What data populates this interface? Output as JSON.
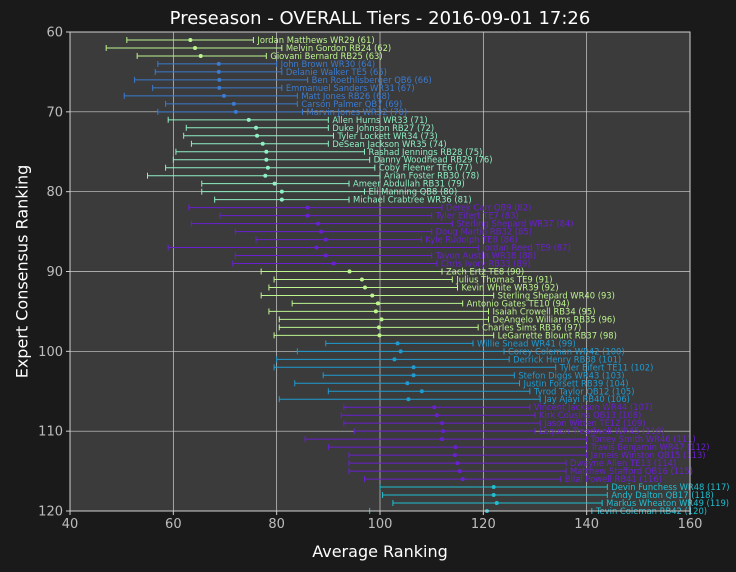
{
  "chart_data": {
    "type": "scatter",
    "title": "Preseason - OVERALL Tiers - 2016-09-01 17:26",
    "xlabel": "Average Ranking",
    "ylabel": "Expert Consensus Ranking",
    "xlim": [
      40,
      160
    ],
    "ylim": [
      120,
      60
    ],
    "x_ticks": [
      40,
      60,
      80,
      100,
      120,
      140,
      160
    ],
    "y_ticks": [
      60,
      70,
      80,
      90,
      100,
      110,
      120
    ],
    "grid": true,
    "background": "#3b3b3b",
    "series": [
      {
        "tier": 1,
        "color": "#bdf58f",
        "points": [
          {
            "label": "Jordan Matthews WR29 (61)",
            "ecr": 61,
            "avg": 63.3,
            "min": 51,
            "max": 75.5
          },
          {
            "label": "Melvin Gordon RB24 (62)",
            "ecr": 62,
            "avg": 64.2,
            "min": 47,
            "max": 81
          },
          {
            "label": "Giovani Bernard RB25 (63)",
            "ecr": 63,
            "avg": 65.3,
            "min": 53,
            "max": 78
          }
        ]
      },
      {
        "tier": 2,
        "color": "#3b7bd1",
        "points": [
          {
            "label": "John Brown WR30 (64)",
            "ecr": 64,
            "avg": 68.8,
            "min": 57,
            "max": 80
          },
          {
            "label": "Delanie Walker TE5 (65)",
            "ecr": 65,
            "avg": 68.8,
            "min": 56.5,
            "max": 81
          },
          {
            "label": "Ben Roethlisberger QB6 (66)",
            "ecr": 66,
            "avg": 68.9,
            "min": 52.5,
            "max": 86
          },
          {
            "label": "Emmanuel Sanders WR31 (67)",
            "ecr": 67,
            "avg": 68.9,
            "min": 56,
            "max": 81
          },
          {
            "label": "Matt Jones RB26 (68)",
            "ecr": 68,
            "avg": 69.8,
            "min": 50.5,
            "max": 84
          },
          {
            "label": "Carson Palmer QB7 (69)",
            "ecr": 69,
            "avg": 71.7,
            "min": 58.5,
            "max": 84
          },
          {
            "label": "Marvin Jones WR32 (70)",
            "ecr": 70,
            "avg": 72.1,
            "min": 57,
            "max": 85
          }
        ]
      },
      {
        "tier": 3,
        "color": "#8ff0c4",
        "points": [
          {
            "label": "Allen Hurns WR33 (71)",
            "ecr": 71,
            "avg": 74.6,
            "min": 59,
            "max": 90
          },
          {
            "label": "Duke Johnson RB27 (72)",
            "ecr": 72,
            "avg": 76.0,
            "min": 62.5,
            "max": 90
          },
          {
            "label": "Tyler Lockett WR34 (73)",
            "ecr": 73,
            "avg": 76.2,
            "min": 62,
            "max": 91
          },
          {
            "label": "DeSean Jackson WR35 (74)",
            "ecr": 74,
            "avg": 77.3,
            "min": 63.5,
            "max": 90
          },
          {
            "label": "Rashad Jennings RB28 (75)",
            "ecr": 75,
            "avg": 78.0,
            "min": 60.5,
            "max": 97
          },
          {
            "label": "Danny Woodhead RB29 (76)",
            "ecr": 76,
            "avg": 78.0,
            "min": 60,
            "max": 98
          },
          {
            "label": "Coby Fleener TE6 (77)",
            "ecr": 77,
            "avg": 78.3,
            "min": 58.5,
            "max": 99
          },
          {
            "label": "Arian Foster RB30 (78)",
            "ecr": 78,
            "avg": 77.8,
            "min": 55,
            "max": 100
          },
          {
            "label": "Ameer Abdullah RB31 (79)",
            "ecr": 79,
            "avg": 79.6,
            "min": 65.5,
            "max": 94
          },
          {
            "label": "Eli Manning QB8 (80)",
            "ecr": 80,
            "avg": 81.0,
            "min": 65.5,
            "max": 97
          },
          {
            "label": "Michael Crabtree WR36 (81)",
            "ecr": 81,
            "avg": 81.0,
            "min": 68,
            "max": 94
          }
        ]
      },
      {
        "tier": 4,
        "color": "#6a1fd1",
        "points": [
          {
            "label": "Derek Carr QB9 (82)",
            "ecr": 82,
            "avg": 86.0,
            "min": 63,
            "max": 112
          },
          {
            "label": "Tyler Eifert TE7 (83)",
            "ecr": 83,
            "avg": 86.0,
            "min": 69,
            "max": 110
          },
          {
            "label": "Sterling Shepard WR37 (84)",
            "ecr": 84,
            "avg": 88.0,
            "min": 63.5,
            "max": 114
          },
          {
            "label": "Doug Martin RB32 (85)",
            "ecr": 85,
            "avg": 88.6,
            "min": 72,
            "max": 110
          },
          {
            "label": "Kyle Rudolph TE8 (86)",
            "ecr": 86,
            "avg": 89.5,
            "min": 76,
            "max": 108
          },
          {
            "label": "Jordan Reed TE9 (87)",
            "ecr": 87,
            "avg": 87.7,
            "min": 59,
            "max": 119
          },
          {
            "label": "Tavon Austin WR38 (88)",
            "ecr": 88,
            "avg": 89.5,
            "min": 72,
            "max": 110
          },
          {
            "label": "Chris Ivory RB33 (89)",
            "ecr": 89,
            "avg": 91.0,
            "min": 71.5,
            "max": 111
          }
        ]
      },
      {
        "tier": 5,
        "color": "#bdf58f",
        "points": [
          {
            "label": "Zach Ertz TE8 (90)",
            "ecr": 90,
            "avg": 94.1,
            "min": 77,
            "max": 112
          },
          {
            "label": "Julius Thomas TE9 (91)",
            "ecr": 91,
            "avg": 96.5,
            "min": 79.5,
            "max": 114
          },
          {
            "label": "Kevin White WR39 (92)",
            "ecr": 92,
            "avg": 97.1,
            "min": 78.5,
            "max": 115
          },
          {
            "label": "Sterling Shepard WR40 (93)",
            "ecr": 93,
            "avg": 98.5,
            "min": 77,
            "max": 122
          },
          {
            "label": "Antonio Gates TE10 (94)",
            "ecr": 94,
            "avg": 99.6,
            "min": 83,
            "max": 116
          },
          {
            "label": "Isaiah Crowell RB34 (95)",
            "ecr": 95,
            "avg": 99.2,
            "min": 78.5,
            "max": 121
          },
          {
            "label": "DeAngelo Williams RB35 (96)",
            "ecr": 96,
            "avg": 100.3,
            "min": 80.5,
            "max": 121
          },
          {
            "label": "Charles Sims RB36 (97)",
            "ecr": 97,
            "avg": 99.8,
            "min": 80.5,
            "max": 119
          },
          {
            "label": "LeGarrette Blount RB37 (98)",
            "ecr": 98,
            "avg": 99.9,
            "min": 79.5,
            "max": 122
          }
        ]
      },
      {
        "tier": 6,
        "color": "#1f9bd1",
        "points": [
          {
            "label": "Willie Snead WR41 (99)",
            "ecr": 99,
            "avg": 103.4,
            "min": 89.5,
            "max": 118
          },
          {
            "label": "Corey Coleman WR42 (100)",
            "ecr": 100,
            "avg": 104.0,
            "min": 84,
            "max": 124
          },
          {
            "label": "Derrick Henry RB38 (101)",
            "ecr": 101,
            "avg": 102.8,
            "min": 80,
            "max": 125
          },
          {
            "label": "Tyler Eifert TE11 (102)",
            "ecr": 102,
            "avg": 106.5,
            "min": 79.5,
            "max": 134
          },
          {
            "label": "Stefon Diggs WR43 (103)",
            "ecr": 103,
            "avg": 106.5,
            "min": 89,
            "max": 126
          },
          {
            "label": "Justin Forsett RB39 (104)",
            "ecr": 104,
            "avg": 105.3,
            "min": 83.5,
            "max": 127
          },
          {
            "label": "Tyrod Taylor QB12 (105)",
            "ecr": 105,
            "avg": 108.1,
            "min": 90,
            "max": 129
          },
          {
            "label": "Jay Ajayi RB40 (106)",
            "ecr": 106,
            "avg": 105.5,
            "min": 80.5,
            "max": 131
          }
        ]
      },
      {
        "tier": 7,
        "color": "#6a1fd1",
        "points": [
          {
            "label": "Vincent Jackson WR44 (107)",
            "ecr": 107,
            "avg": 110.5,
            "min": 93,
            "max": 129
          },
          {
            "label": "Kirk Cousins QB13 (108)",
            "ecr": 108,
            "avg": 111.0,
            "min": 92.5,
            "max": 130
          },
          {
            "label": "Jason Witten TE12 (109)",
            "ecr": 109,
            "avg": 112.0,
            "min": 93,
            "max": 131
          },
          {
            "label": "Laquon Treadwell WR45 (110)",
            "ecr": 110,
            "avg": 112.2,
            "min": 95,
            "max": 130
          },
          {
            "label": "Torrey Smith WR46 (111)",
            "ecr": 111,
            "avg": 112.0,
            "min": 85.5,
            "max": 140
          },
          {
            "label": "Travis Benjamin WR47 (112)",
            "ecr": 112,
            "avg": 114.6,
            "min": 90,
            "max": 140
          },
          {
            "label": "Jameis Winston QB15 (113)",
            "ecr": 113,
            "avg": 114.5,
            "min": 94,
            "max": 140
          },
          {
            "label": "Dwayne Allen TE13 (114)",
            "ecr": 114,
            "avg": 115.0,
            "min": 94,
            "max": 136
          },
          {
            "label": "Matthew Stafford QB16 (115)",
            "ecr": 115,
            "avg": 115.4,
            "min": 94,
            "max": 136
          },
          {
            "label": "Bilal Powell RB41 (116)",
            "ecr": 116,
            "avg": 116.0,
            "min": 97,
            "max": 135
          }
        ]
      },
      {
        "tier": 8,
        "color": "#1fbfd1",
        "points": [
          {
            "label": "Devin Funchess WR48 (117)",
            "ecr": 117,
            "avg": 122.0,
            "min": 100,
            "max": 144
          },
          {
            "label": "Andy Dalton QB17 (118)",
            "ecr": 118,
            "avg": 122.0,
            "min": 100.5,
            "max": 144
          },
          {
            "label": "Markus Wheaton WR49 (119)",
            "ecr": 119,
            "avg": 122.6,
            "min": 102.5,
            "max": 143
          },
          {
            "label": "Tevin Coleman RB42 (120)",
            "ecr": 120,
            "avg": 120.7,
            "min": 98,
            "max": 141
          }
        ]
      }
    ]
  }
}
